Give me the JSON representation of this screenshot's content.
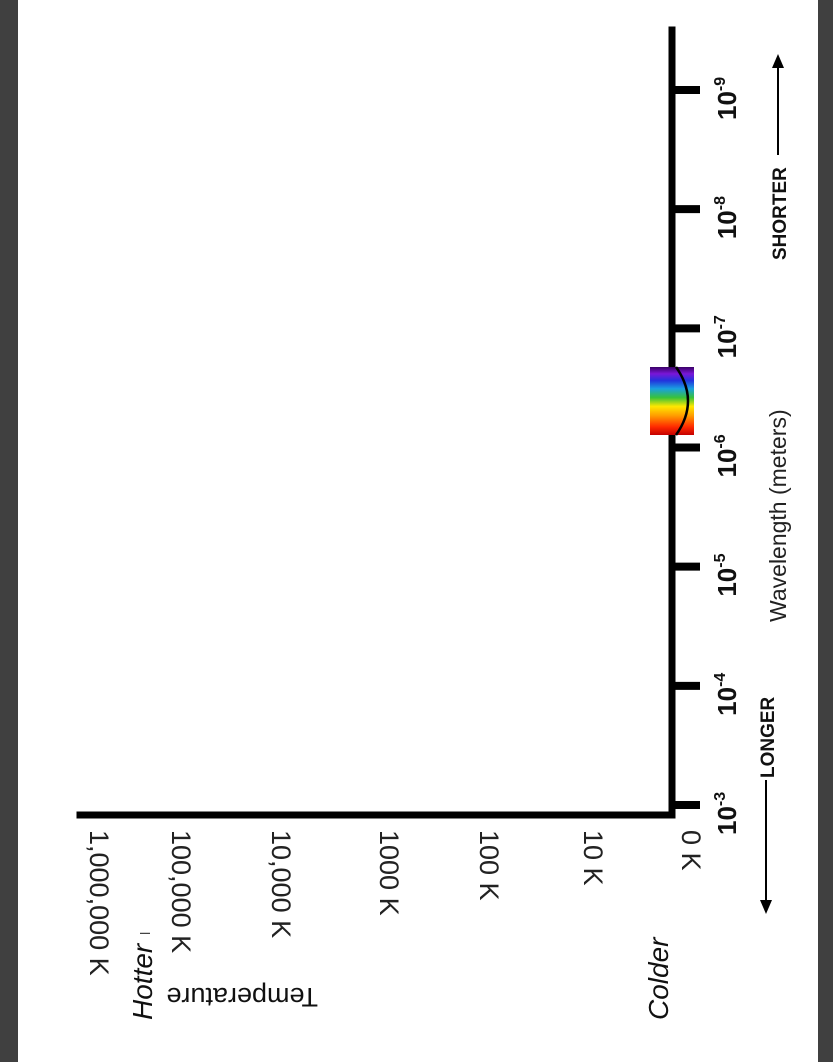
{
  "chart_data": {
    "type": "line",
    "title": "",
    "xlabel": "Wavelength (meters)",
    "ylabel": "Temperature",
    "x_scale": "log",
    "x_ticks": [
      {
        "base": "10",
        "exp": "-3",
        "value": 0.001
      },
      {
        "base": "10",
        "exp": "-4",
        "value": 0.0001
      },
      {
        "base": "10",
        "exp": "-5",
        "value": 1e-05
      },
      {
        "base": "10",
        "exp": "-6",
        "value": 1e-06
      },
      {
        "base": "10",
        "exp": "-7",
        "value": 1e-07
      },
      {
        "base": "10",
        "exp": "-8",
        "value": 1e-08
      },
      {
        "base": "10",
        "exp": "-9",
        "value": 1e-09
      }
    ],
    "y_scale": "log",
    "y_ticks": [
      "0 K",
      "10 K",
      "100 K",
      "1000 K",
      "10,000 K",
      "100,000 K",
      "1,000,000 K"
    ],
    "y_tick_values": [
      0,
      10,
      100,
      1000,
      10000,
      100000,
      1000000
    ],
    "direction_labels": {
      "longer": "LONGER",
      "shorter": "SHORTER"
    },
    "temperature_labels": {
      "hotter": "Hotter",
      "colder": "Colder"
    },
    "visible_spectrum": {
      "wavelength_min": 4e-07,
      "wavelength_max": 7e-07
    },
    "series": [],
    "grid": false,
    "orientation": "rotated 90 degrees clockwise"
  },
  "stray_mark": "–"
}
